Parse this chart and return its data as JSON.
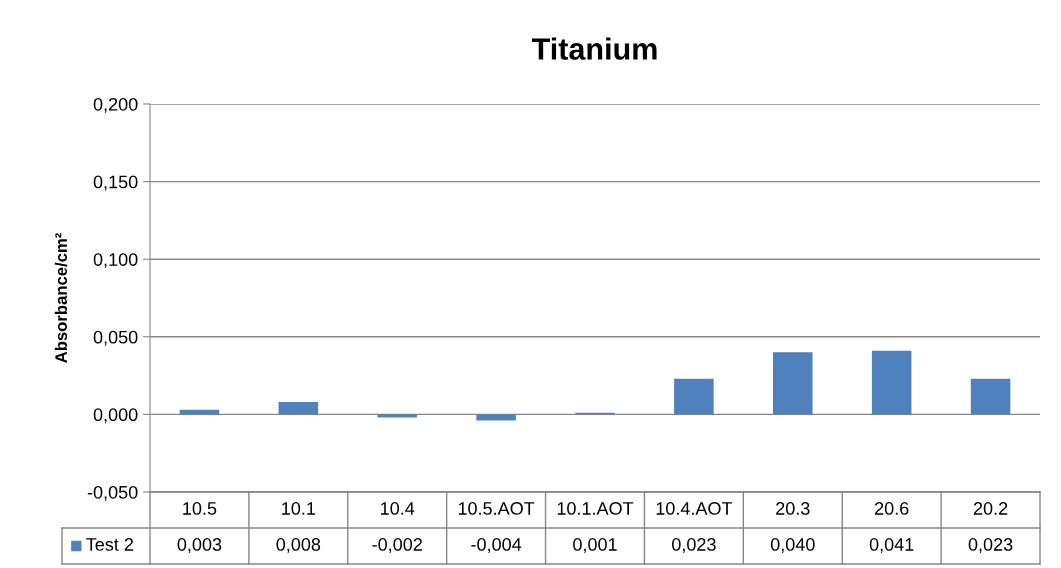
{
  "chart_data": {
    "type": "bar",
    "title": "Titanium",
    "ylabel": "Absorbance/cm²",
    "categories": [
      "10.5",
      "10.1",
      "10.4",
      "10.5.AOT",
      "10.1.AOT",
      "10.4.AOT",
      "20.3",
      "20.6",
      "20.2"
    ],
    "series": [
      {
        "name": "Test 2",
        "color": "#4f81bd",
        "values": [
          0.003,
          0.008,
          -0.002,
          -0.004,
          0.001,
          0.023,
          0.04,
          0.041,
          0.023
        ],
        "value_labels": [
          "0,003",
          "0,008",
          "-0,002",
          "-0,004",
          "0,001",
          "0,023",
          "0,040",
          "0,041",
          "0,023"
        ]
      }
    ],
    "ylim": [
      -0.05,
      0.2
    ],
    "yticks": [
      {
        "value": -0.05,
        "label": "-0,050"
      },
      {
        "value": 0,
        "label": "0,000"
      },
      {
        "value": 0.05,
        "label": "0,050"
      },
      {
        "value": 0.1,
        "label": "0,100"
      },
      {
        "value": 0.15,
        "label": "0,150"
      },
      {
        "value": 0.2,
        "label": "0,200"
      }
    ],
    "grid": "y"
  }
}
